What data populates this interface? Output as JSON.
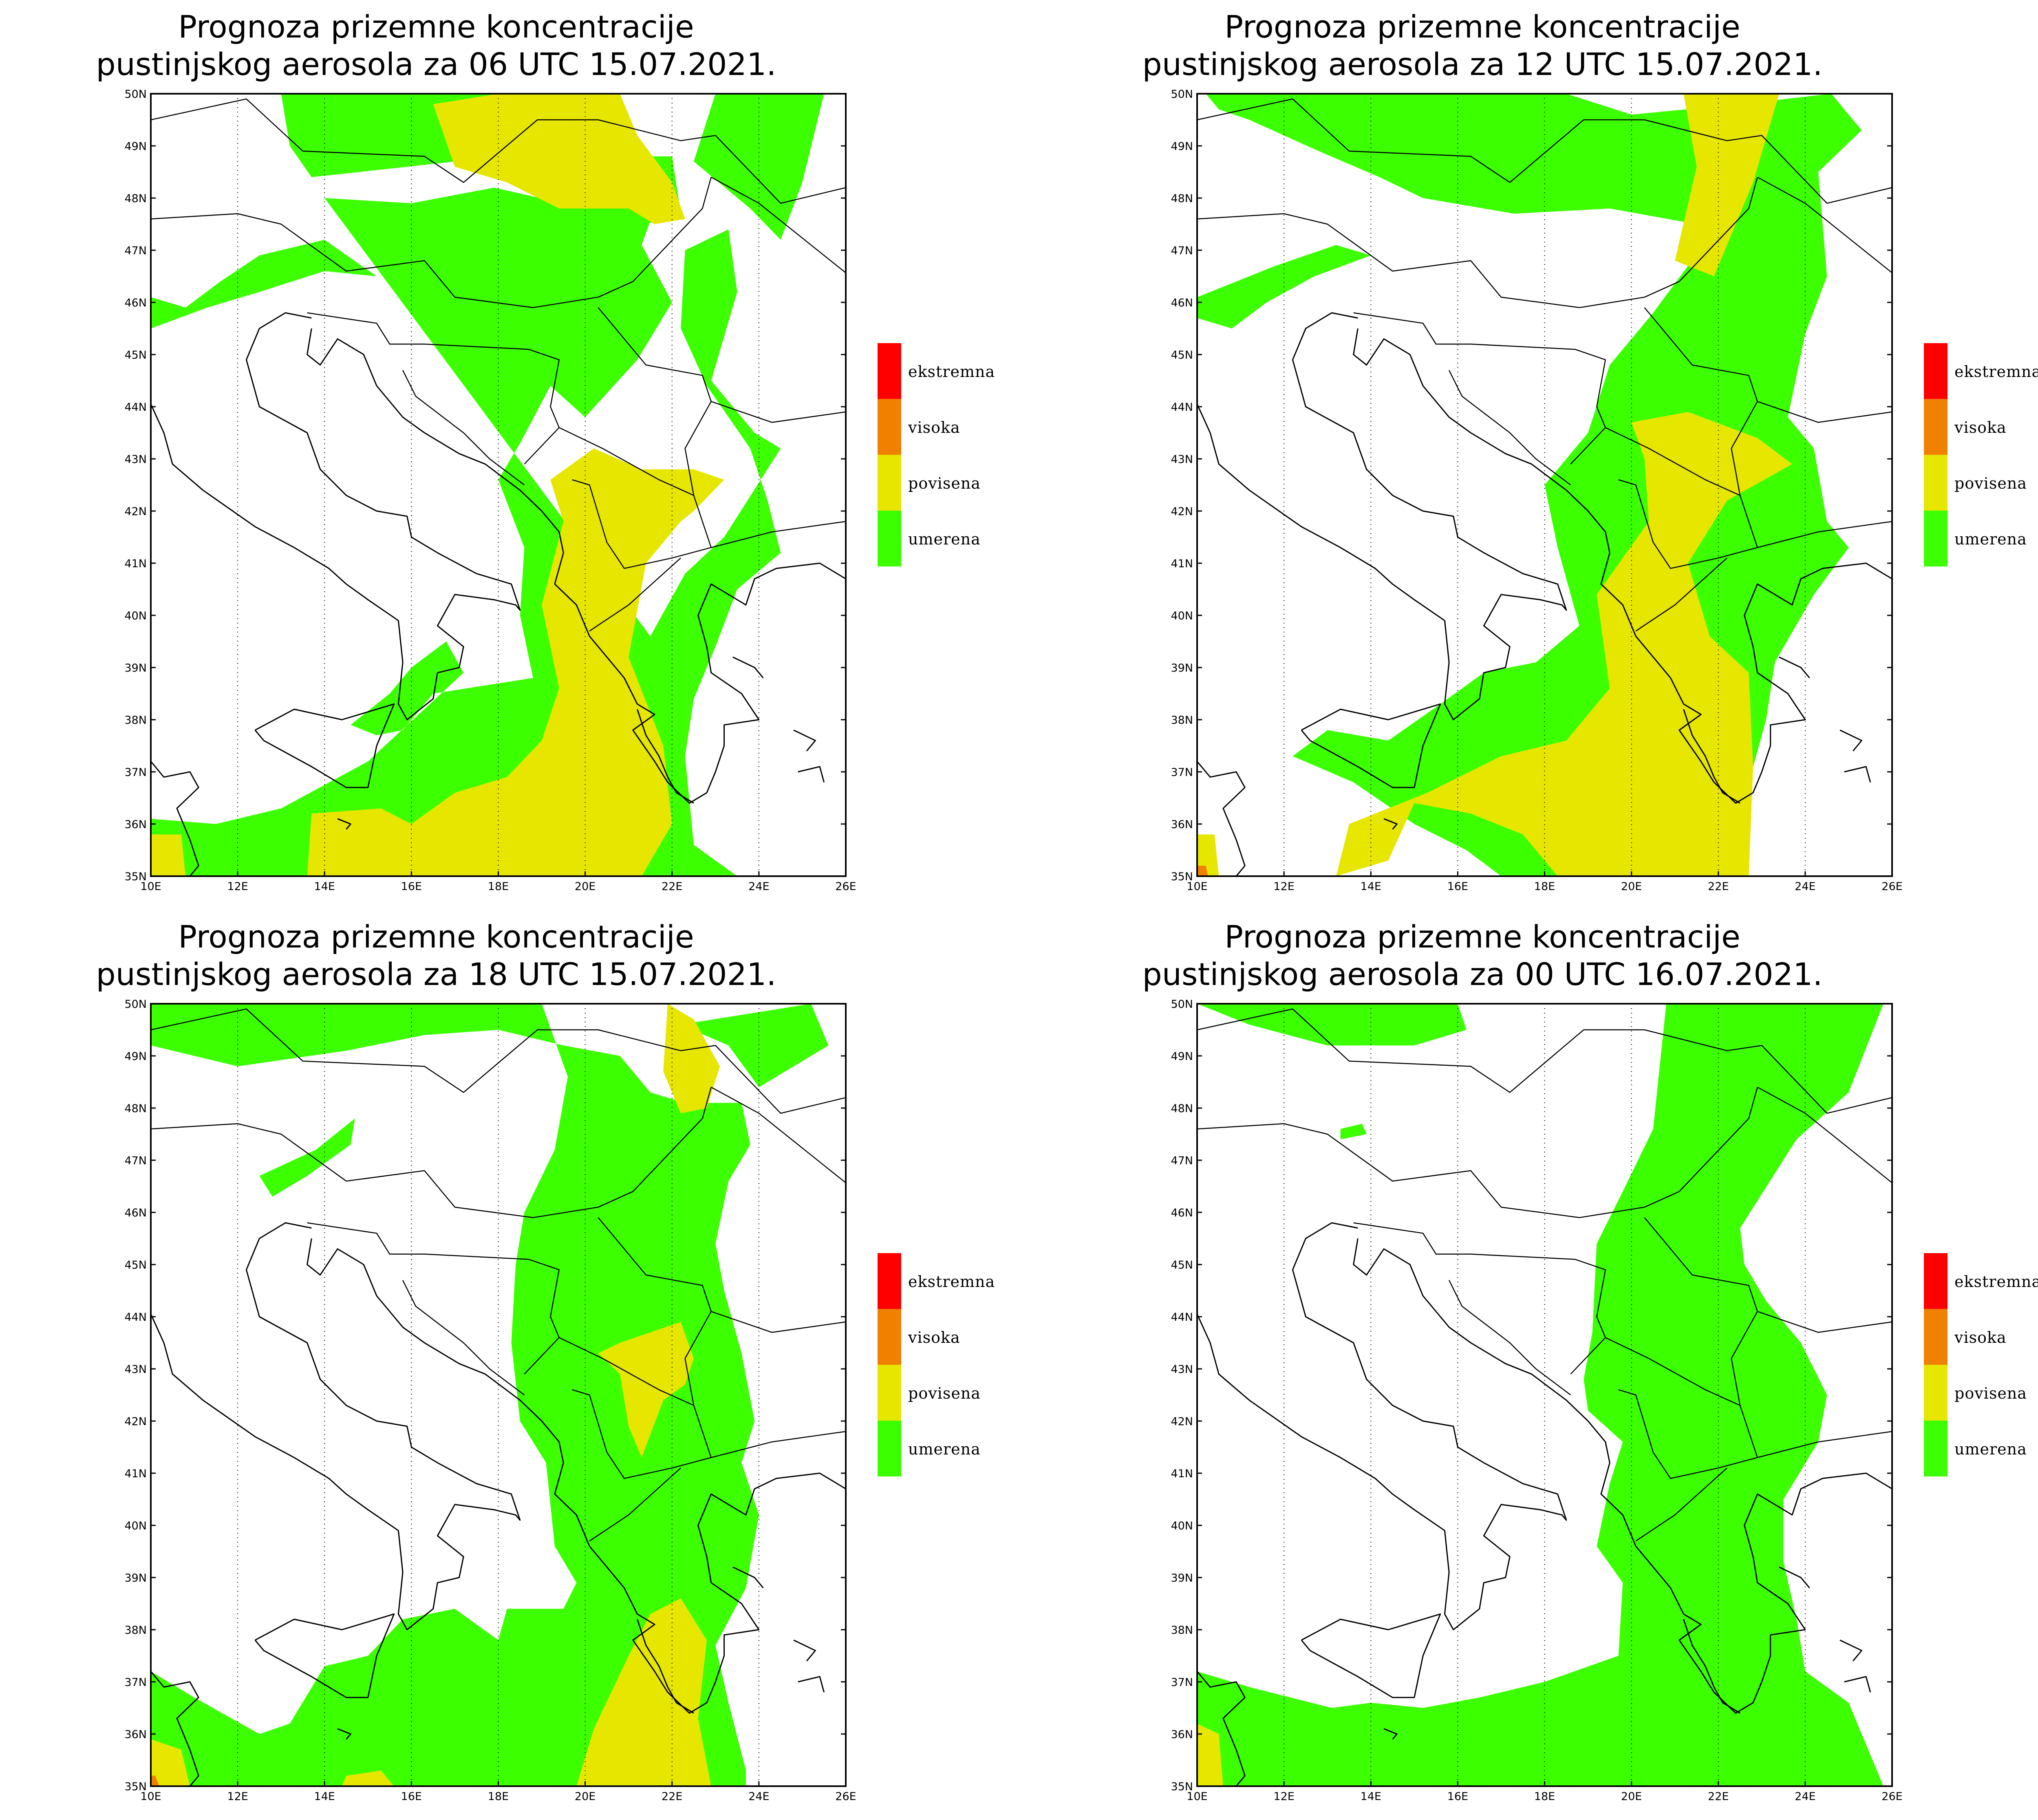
{
  "legend": {
    "items": [
      {
        "label": "ekstremna",
        "color": "#ff0000"
      },
      {
        "label": "visoka",
        "color": "#f08000"
      },
      {
        "label": "povisena",
        "color": "#e6e600"
      },
      {
        "label": "umerena",
        "color": "#3cff00"
      }
    ]
  },
  "axes": {
    "lon_ticks": [
      "10E",
      "12E",
      "14E",
      "16E",
      "18E",
      "20E",
      "22E",
      "24E",
      "26E"
    ],
    "lat_ticks": [
      "35N",
      "36N",
      "37N",
      "38N",
      "39N",
      "40N",
      "41N",
      "42N",
      "43N",
      "44N",
      "45N",
      "46N",
      "47N",
      "48N",
      "49N",
      "50N"
    ],
    "lon_range": [
      10,
      26
    ],
    "lat_range": [
      35,
      50
    ],
    "grid": "dotted meridians"
  },
  "colors": {
    "background": "#ffffff",
    "boundaries": "#000000",
    "gridlines": "#000000"
  },
  "panels": [
    {
      "title_line1": "Prognoza prizemne koncentracije",
      "title_line2": "pustinjskog aerosola za 06 UTC 15.07.2021."
    },
    {
      "title_line1": "Prognoza prizemne koncentracije",
      "title_line2": "pustinjskog aerosola za 12 UTC 15.07.2021."
    },
    {
      "title_line1": "Prognoza prizemne koncentracije",
      "title_line2": "pustinjskog aerosola za 18 UTC 15.07.2021."
    },
    {
      "title_line1": "Prognoza prizemne koncentracije",
      "title_line2": "pustinjskog aerosola za 00 UTC 16.07.2021."
    }
  ]
}
